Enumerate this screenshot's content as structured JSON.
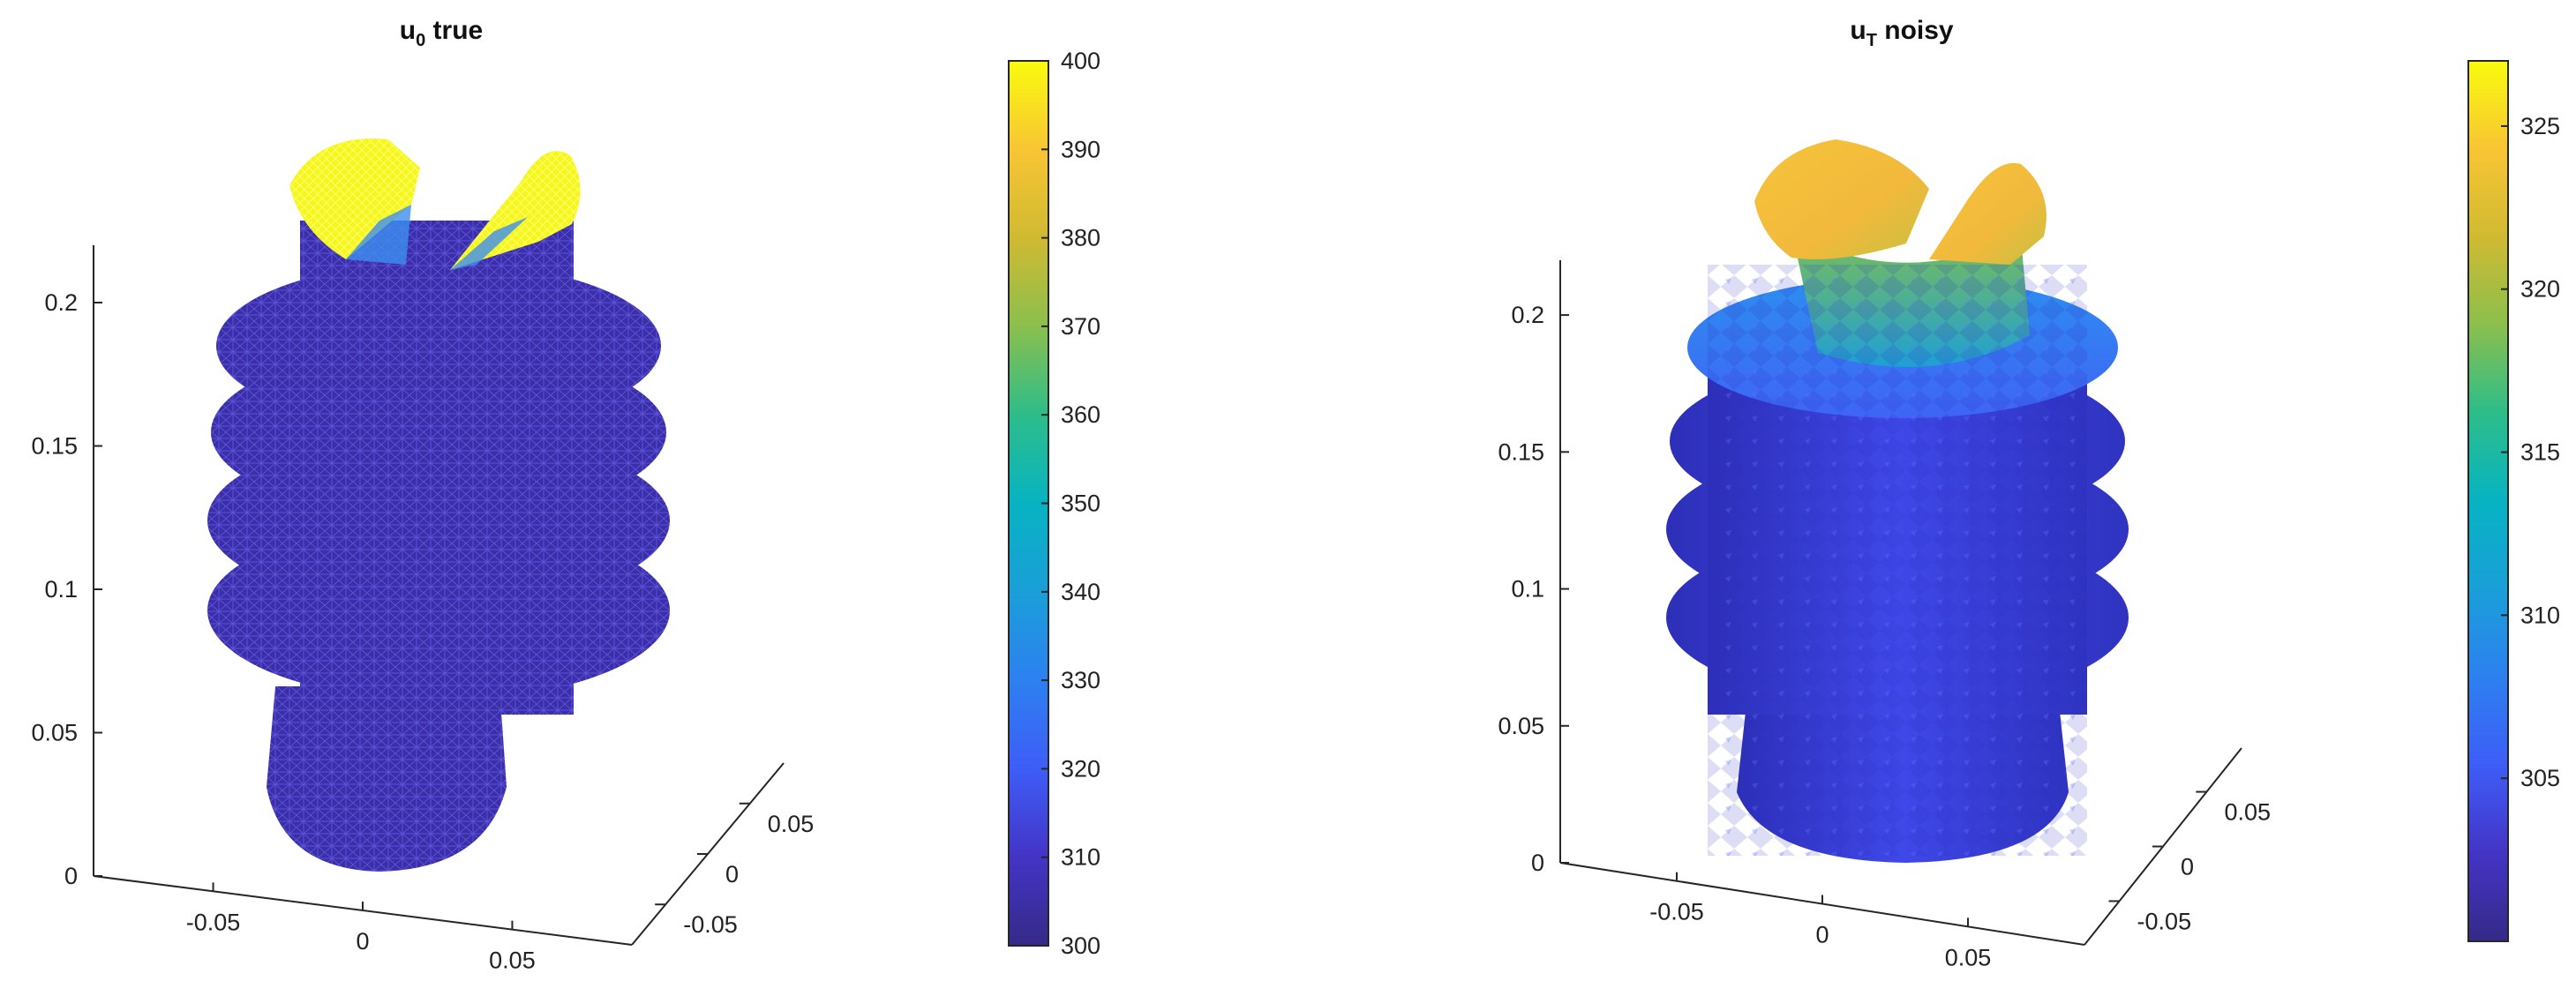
{
  "figure": {
    "panels": [
      {
        "title_main": "u",
        "title_sub": "0",
        "title_rest": " true"
      },
      {
        "title_main": "u",
        "title_sub": "T",
        "title_rest": " noisy"
      }
    ]
  },
  "chart_data": [
    {
      "type": "surface3d-wireframe",
      "title": "u0 true",
      "render": "wireframe mesh",
      "colormap": "parula",
      "clim": [
        300,
        400
      ],
      "colorbar_ticks": [
        300,
        310,
        320,
        330,
        340,
        350,
        360,
        370,
        380,
        390,
        400
      ],
      "z_ticks": [
        "0",
        "0.05",
        "0.1",
        "0.15",
        "0.2"
      ],
      "x_ticks": [
        "-0.05",
        "0",
        "0.05"
      ],
      "y_ticks": [
        "-0.05",
        "0",
        "0.05"
      ],
      "zlim": [
        0,
        0.22
      ],
      "xlim": [
        -0.09,
        0.09
      ],
      "ylim": [
        -0.09,
        0.09
      ],
      "mesh_values": {
        "body": 300,
        "top_lobes": 400
      }
    },
    {
      "type": "surface3d",
      "title": "uT noisy",
      "render": "shaded surface",
      "colormap": "parula",
      "clim": [
        300,
        327
      ],
      "colorbar_ticks": [
        305,
        310,
        315,
        320,
        325
      ],
      "z_ticks": [
        "0",
        "0.05",
        "0.1",
        "0.15",
        "0.2"
      ],
      "x_ticks": [
        "-0.05",
        "0",
        "0.05"
      ],
      "y_ticks": [
        "-0.05",
        "0",
        "0.05"
      ],
      "zlim": [
        0,
        0.22
      ],
      "xlim": [
        -0.09,
        0.09
      ],
      "ylim": [
        -0.09,
        0.09
      ],
      "surface_values": {
        "lower_body": 302,
        "top_disc": 308,
        "neck": 315,
        "top_lobes": 322
      }
    }
  ]
}
